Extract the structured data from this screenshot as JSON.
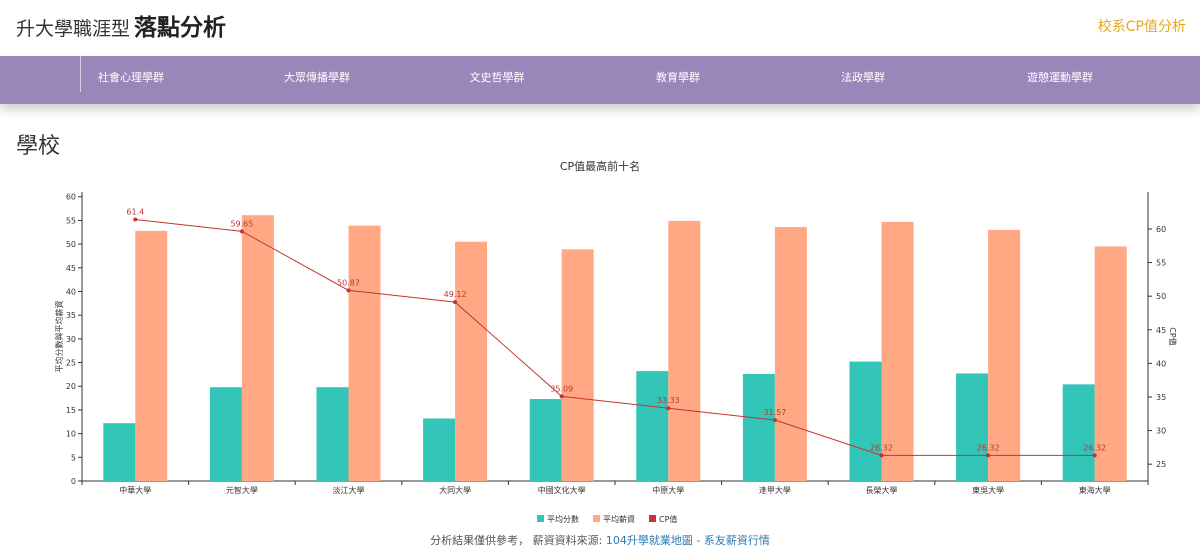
{
  "header": {
    "title_prefix": "升大學職涯型",
    "title_main": "落點分析",
    "cp_link": "校系CP值分析"
  },
  "nav": {
    "items": [
      {
        "label": "社會心理學群"
      },
      {
        "label": "大眾傳播學群"
      },
      {
        "label": "文史哲學群"
      },
      {
        "label": "教育學群"
      },
      {
        "label": "法政學群"
      },
      {
        "label": "遊憩運動學群"
      }
    ]
  },
  "section": {
    "title": "學校"
  },
  "chart_data": {
    "type": "bar",
    "title": "CP值最高前十名",
    "categories": [
      "中華大學",
      "元智大學",
      "淡江大學",
      "大同大學",
      "中國文化大學",
      "中原大學",
      "逢甲大學",
      "長榮大學",
      "東吳大學",
      "東海大學"
    ],
    "series": [
      {
        "name": "平均分數",
        "type": "bar",
        "axis": "left",
        "color": "#33c5b8",
        "values": [
          12.2,
          19.8,
          19.8,
          13.2,
          17.3,
          23.2,
          22.6,
          25.2,
          22.7,
          20.4
        ]
      },
      {
        "name": "平均薪資",
        "type": "bar",
        "axis": "left",
        "color": "#ffa883",
        "values": [
          52.8,
          56.1,
          53.9,
          50.5,
          48.9,
          54.9,
          53.6,
          54.7,
          53.0,
          49.5
        ]
      },
      {
        "name": "CP值",
        "type": "line",
        "axis": "right",
        "color": "#c23531",
        "values": [
          61.4,
          59.65,
          50.87,
          49.12,
          35.09,
          33.33,
          31.57,
          26.32,
          26.32,
          26.32
        ]
      }
    ],
    "ylabel": "平均分數與平均薪資",
    "y2label": "CP值",
    "ylim": [
      0,
      61
    ],
    "yticks": [
      0,
      5,
      10,
      15,
      20,
      25,
      30,
      35,
      40,
      45,
      50,
      55,
      60
    ],
    "y2lim": [
      22.5,
      65.5
    ],
    "y2ticks": [
      25,
      30,
      35,
      40,
      45,
      50,
      55,
      60
    ],
    "legend_position": "bottom-center"
  },
  "footer": {
    "note": "分析結果僅供參考， 薪資資料來源: ",
    "link": "104升學就業地圖 - 系友薪資行情"
  }
}
